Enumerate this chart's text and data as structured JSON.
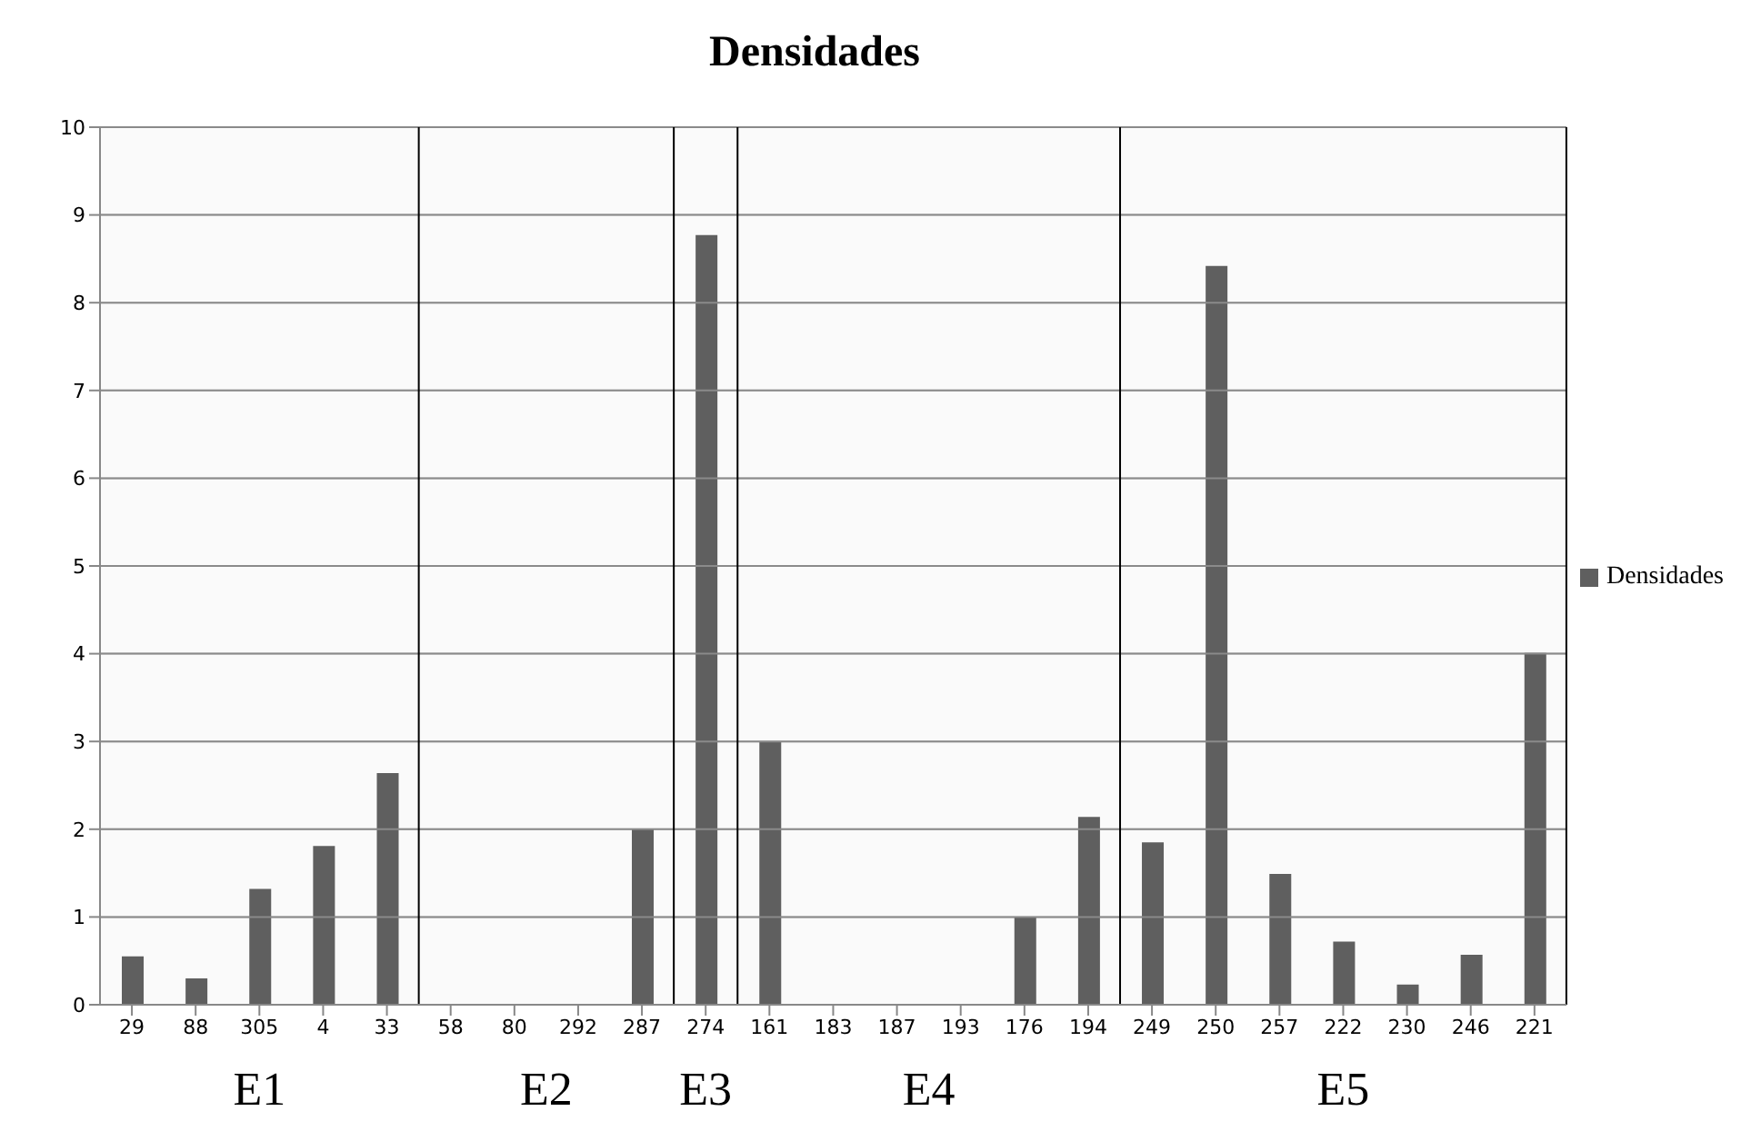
{
  "chart_data": {
    "type": "bar",
    "title": "Densidades",
    "categories": [
      "29",
      "88",
      "305",
      "4",
      "33",
      "58",
      "80",
      "292",
      "287",
      "274",
      "161",
      "183",
      "187",
      "193",
      "176",
      "194",
      "249",
      "250",
      "257",
      "222",
      "230",
      "246",
      "221"
    ],
    "series": [
      {
        "name": "Densidades",
        "color": "#5f5f5f",
        "values": [
          0.55,
          0.3,
          1.32,
          1.81,
          2.64,
          0,
          0,
          0,
          2.0,
          8.77,
          3.0,
          0,
          0,
          0,
          1.0,
          2.14,
          1.85,
          8.42,
          1.49,
          0.72,
          0.23,
          0.57,
          4.01
        ]
      }
    ],
    "ylim": [
      0,
      10
    ],
    "yticks": [
      0,
      1,
      2,
      3,
      4,
      5,
      6,
      7,
      8,
      9,
      10
    ],
    "grid": "y",
    "legend": "right",
    "bands": [
      {
        "axis": "x",
        "from": "29",
        "to": "33",
        "label": "E1",
        "color": "#f7f7f7"
      },
      {
        "axis": "x",
        "from": "58",
        "to": "287",
        "label": "E2",
        "color": "#f7f7f7"
      },
      {
        "axis": "x",
        "from": "274",
        "to": "274",
        "label": "E3",
        "color": "#f7f7f7"
      },
      {
        "axis": "x",
        "from": "161",
        "to": "194",
        "label": "E4",
        "color": "#f7f7f7"
      },
      {
        "axis": "x",
        "from": "249",
        "to": "221",
        "label": "E5",
        "color": "#f7f7f7"
      }
    ]
  }
}
